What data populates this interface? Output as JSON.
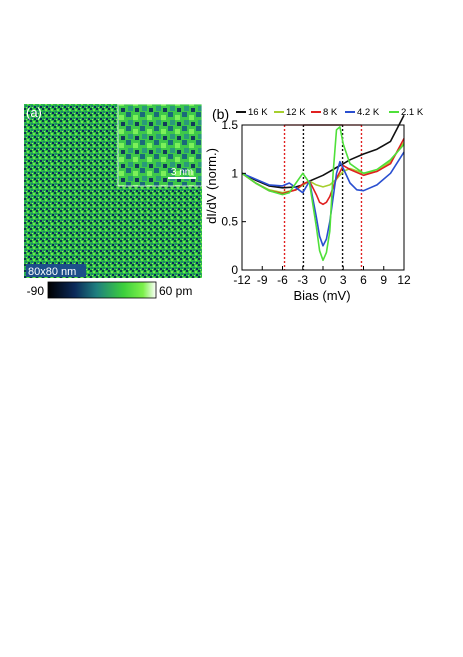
{
  "panel_a": {
    "label": "(a)",
    "scalebar_label": "3 nm",
    "size_label": "80x80 nm",
    "colorbar": {
      "min_label": "-90",
      "max_label": "60 pm",
      "colors": [
        "#000000",
        "#0b2a5a",
        "#1f7f7f",
        "#3ccf3c",
        "#7bf04a",
        "#ffffff"
      ]
    }
  },
  "panel_b": {
    "label": "(b)",
    "chart_data": {
      "type": "line",
      "xlabel": "Bias (mV)",
      "ylabel": "dI/dV (norm.)",
      "xlim": [
        -12,
        12
      ],
      "ylim": [
        0,
        1.5
      ],
      "xticks": [
        "-12",
        "-9",
        "-6",
        "-3",
        "0",
        "3",
        "6",
        "9",
        "12"
      ],
      "yticks": [
        "0",
        "0.5",
        "1",
        "1.5"
      ],
      "legend_placement": "top",
      "gap_markers": [
        {
          "color": "#111111",
          "x": [
            -2.9,
            2.9
          ],
          "top": 1.5
        },
        {
          "color": "#e02020",
          "x": [
            -5.7,
            5.7
          ],
          "top": 1.5
        }
      ],
      "series": [
        {
          "name": "16 K",
          "color": "#111111",
          "x": [
            -12,
            -10,
            -8,
            -6,
            -4,
            -3,
            -2,
            -1,
            0,
            1,
            2,
            3,
            4,
            6,
            8,
            10,
            12
          ],
          "y": [
            1.0,
            0.93,
            0.87,
            0.85,
            0.86,
            0.88,
            0.92,
            0.95,
            0.98,
            1.02,
            1.06,
            1.1,
            1.14,
            1.2,
            1.25,
            1.33,
            1.6
          ]
        },
        {
          "name": "12 K",
          "color": "#a6cf2e",
          "x": [
            -12,
            -10,
            -8,
            -6,
            -4,
            -3,
            -2,
            -1,
            0,
            1,
            2,
            3,
            4,
            6,
            8,
            10,
            12
          ],
          "y": [
            1.0,
            0.9,
            0.83,
            0.8,
            0.83,
            0.88,
            0.92,
            0.88,
            0.86,
            0.88,
            0.94,
            1.02,
            1.05,
            1.0,
            1.02,
            1.12,
            1.32
          ]
        },
        {
          "name": "8 K",
          "color": "#e02020",
          "x": [
            -12,
            -10,
            -8,
            -6,
            -4,
            -3,
            -2,
            -1,
            -0.5,
            0,
            0.5,
            1,
            2,
            3,
            4,
            6,
            8,
            10,
            12
          ],
          "y": [
            1.0,
            0.9,
            0.82,
            0.79,
            0.83,
            0.89,
            0.92,
            0.78,
            0.7,
            0.68,
            0.7,
            0.76,
            0.95,
            1.08,
            1.04,
            0.98,
            1.02,
            1.1,
            1.36
          ]
        },
        {
          "name": "4.2 K",
          "color": "#2a4fd0",
          "x": [
            -12,
            -10,
            -8,
            -6,
            -5,
            -4,
            -3,
            -2,
            -1,
            -0.5,
            0,
            0.5,
            1,
            2,
            2.5,
            3,
            4,
            5,
            6,
            8,
            10,
            12
          ],
          "y": [
            1.0,
            0.94,
            0.88,
            0.87,
            0.9,
            0.85,
            0.8,
            0.92,
            0.55,
            0.35,
            0.25,
            0.32,
            0.5,
            1.0,
            1.12,
            1.05,
            0.9,
            0.83,
            0.82,
            0.88,
            1.0,
            1.22
          ]
        },
        {
          "name": "2.1 K",
          "color": "#4fe03a",
          "x": [
            -12,
            -10,
            -8,
            -6,
            -5,
            -4,
            -3,
            -2,
            -1,
            -0.5,
            0,
            0.5,
            1,
            1.5,
            2,
            2.5,
            3,
            4,
            6,
            8,
            10,
            12
          ],
          "y": [
            1.0,
            0.9,
            0.82,
            0.78,
            0.8,
            0.9,
            1.0,
            0.9,
            0.45,
            0.2,
            0.1,
            0.18,
            0.4,
            1.0,
            1.45,
            1.48,
            1.3,
            1.1,
            1.0,
            1.04,
            1.14,
            1.3
          ]
        }
      ]
    }
  }
}
